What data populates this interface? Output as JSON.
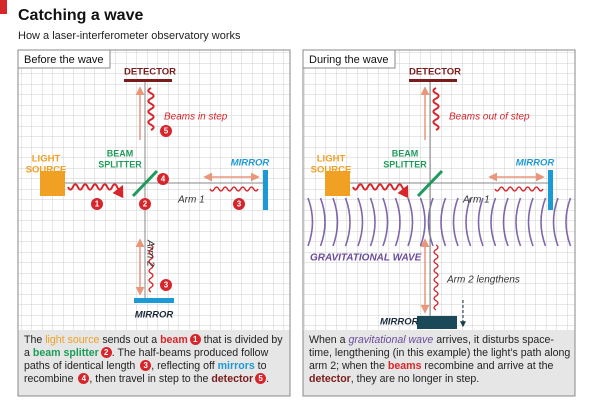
{
  "header": {
    "title": "Catching a wave",
    "subtitle": "How a laser-interferometer observatory works"
  },
  "panels": [
    {
      "label": "Before the wave",
      "detector": "DETECTOR",
      "beam_note": "Beams in step",
      "light_source": [
        "LIGHT",
        "SOURCE"
      ],
      "beam_splitter": [
        "BEAM",
        "SPLITTER"
      ],
      "mirror_right": "MIRROR",
      "arm1": "Arm 1",
      "arm2": "Arm 2",
      "mirror_bottom": "MIRROR",
      "badges": [
        "1",
        "2",
        "3",
        "3",
        "4",
        "5"
      ],
      "caption": [
        {
          "text": "The "
        },
        {
          "text": "light source",
          "color": "#f0a023"
        },
        {
          "text": " sends out a "
        },
        {
          "text": "beam",
          "color": "#d7262b",
          "bold": true
        },
        {
          "badge": "1"
        },
        {
          "text": " that is divided by a "
        },
        {
          "text": "beam splitter",
          "color": "#1e9b5a",
          "bold": true
        },
        {
          "badge": "2"
        },
        {
          "text": ". The half-beams produced follow paths of identical length "
        },
        {
          "badge": "3"
        },
        {
          "text": ", reflecting off "
        },
        {
          "text": "mirrors",
          "color": "#1c9ad6",
          "bold": true
        },
        {
          "text": " to recombine "
        },
        {
          "badge": "4"
        },
        {
          "text": ", then travel in step to the "
        },
        {
          "text": "detector",
          "color": "#7a1c1c",
          "bold": true
        },
        {
          "badge": "5"
        },
        {
          "text": "."
        }
      ]
    },
    {
      "label": "During the wave",
      "detector": "DETECTOR",
      "beam_note": "Beams out of step",
      "light_source": [
        "LIGHT",
        "SOURCE"
      ],
      "beam_splitter": [
        "BEAM",
        "SPLITTER"
      ],
      "mirror_right": "MIRROR",
      "arm1": "Arm 1",
      "wave_label": "GRAVITATIONAL WAVE",
      "arm2": "Arm 2 lengthens",
      "mirror_bottom": "MIRROR",
      "caption": [
        {
          "text": "When a "
        },
        {
          "text": "gravitational wave",
          "color": "#6a4c9c",
          "italic": true
        },
        {
          "text": " arrives, it disturbs space-time, lengthening (in this example) the light’s path along arm 2; when the "
        },
        {
          "text": "beams",
          "color": "#d7262b",
          "bold": true
        },
        {
          "text": " recombine and arrive at the "
        },
        {
          "text": "detector",
          "color": "#7a1c1c",
          "bold": true
        },
        {
          "text": ", they are no longer in step."
        }
      ]
    }
  ]
}
